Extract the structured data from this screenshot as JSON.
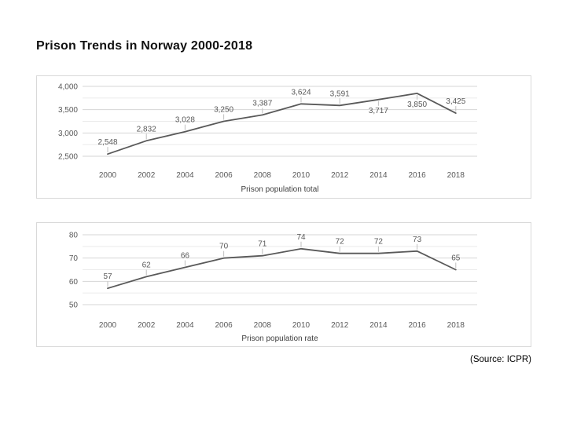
{
  "slide": {
    "title": "Prison Trends in Norway 2000-2018",
    "source": "(Source: ICPR)"
  },
  "colors": {
    "line": "#595959",
    "grid_major": "#d6d6d6",
    "grid_minor": "#ebebeb",
    "leader": "#bfbfbf",
    "tick_label": "#595959",
    "data_label": "#595959",
    "axis_title": "#404040",
    "panel_border": "#d9d9d9"
  },
  "chart_data": [
    {
      "type": "line",
      "title": "Prison population total",
      "categories": [
        "2000",
        "2002",
        "2004",
        "2006",
        "2008",
        "2010",
        "2012",
        "2014",
        "2016",
        "2018"
      ],
      "values": [
        2548,
        2832,
        3028,
        3250,
        3387,
        3624,
        3591,
        3717,
        3850,
        3425
      ],
      "data_labels": [
        "2,548",
        "2,832",
        "3,028",
        "3,250",
        "3,387",
        "3,624",
        "3,591",
        "3,717",
        "3,850",
        "3,425"
      ],
      "label_position": [
        "above",
        "above",
        "above",
        "above",
        "above",
        "above",
        "above",
        "below",
        "below",
        "above"
      ],
      "ylim": [
        2500,
        4000
      ],
      "ytick_values": [
        2500,
        3000,
        3500,
        4000
      ],
      "ytick_labels": [
        "2,500",
        "3,000",
        "3,500",
        "4,000"
      ],
      "yminor_values": [
        2750,
        3250,
        3750
      ],
      "xlabel": "Prison population total",
      "ylabel": "",
      "grid": true,
      "legend": "none"
    },
    {
      "type": "line",
      "title": "Prison population rate",
      "categories": [
        "2000",
        "2002",
        "2004",
        "2006",
        "2008",
        "2010",
        "2012",
        "2014",
        "2016",
        "2018"
      ],
      "values": [
        57,
        62,
        66,
        70,
        71,
        74,
        72,
        72,
        73,
        65
      ],
      "data_labels": [
        "57",
        "62",
        "66",
        "70",
        "71",
        "74",
        "72",
        "72",
        "73",
        "65"
      ],
      "label_position": [
        "above",
        "above",
        "above",
        "above",
        "above",
        "above",
        "above",
        "above",
        "above",
        "above"
      ],
      "ylim": [
        50,
        80
      ],
      "ytick_values": [
        50,
        60,
        70,
        80
      ],
      "ytick_labels": [
        "50",
        "60",
        "70",
        "80"
      ],
      "yminor_values": [
        55,
        65,
        75
      ],
      "xlabel": "Prison population rate",
      "ylabel": "",
      "grid": true,
      "legend": "none"
    }
  ]
}
